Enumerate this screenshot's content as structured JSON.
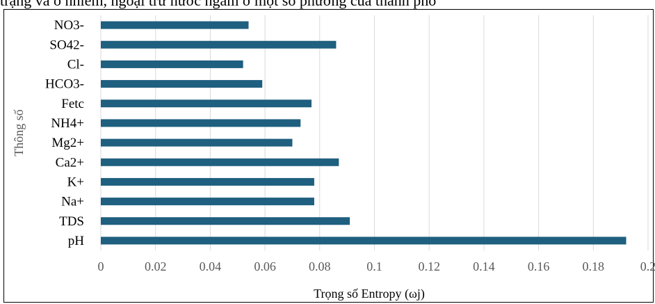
{
  "top_text": "trạng và ô nhiễm, ngoại trừ nước ngầm ở một số phường của thành phố",
  "chart_data": {
    "type": "bar",
    "orientation": "horizontal",
    "title": "",
    "xlabel": "Trọng số Entropy (ωj)",
    "ylabel": "Thông số",
    "categories": [
      "NO3-",
      "SO42-",
      "Cl-",
      "HCO3-",
      "Fetc",
      "NH4+",
      "Mg2+",
      "Ca2+",
      "K+",
      "Na+",
      "TDS",
      "pH"
    ],
    "values": [
      0.054,
      0.086,
      0.052,
      0.059,
      0.077,
      0.073,
      0.07,
      0.087,
      0.078,
      0.078,
      0.091,
      0.192
    ],
    "xlim": [
      0,
      0.2
    ],
    "ticks": [
      "0",
      "0.02",
      "0.04",
      "0.06",
      "0.08",
      "0.1",
      "0.12",
      "0.14",
      "0.16",
      "0.18",
      "0.2"
    ],
    "tick_values": [
      0,
      0.02,
      0.04,
      0.06,
      0.08,
      0.1,
      0.12,
      0.14,
      0.16,
      0.18,
      0.2
    ],
    "grid": true,
    "bar_color": "#1f5f7f",
    "grid_color": "#d9d9d9"
  }
}
